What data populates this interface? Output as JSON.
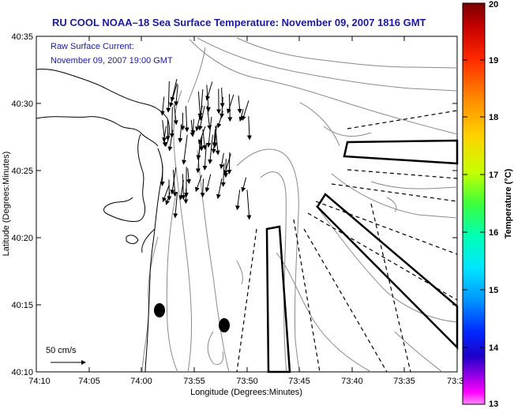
{
  "title": "RU COOL  NOAA–18  Sea Surface Temperature:  November 09, 2007 1816 GMT",
  "annotation": {
    "line1": "Raw Surface Current:",
    "line2": "November 09, 2007 19:00 GMT"
  },
  "scale": {
    "label": "50 cm/s"
  },
  "axes": {
    "xlabel": "Longitude (Degrees:Minutes)",
    "ylabel": "Latitude (Degrees:Minutes)",
    "x_ticks": [
      "74:10",
      "74:05",
      "74:00",
      "73:55",
      "73:50",
      "73:45",
      "73:40",
      "73:35",
      "73:3"
    ],
    "y_ticks": [
      "40:35",
      "40:30",
      "40:25",
      "40:20",
      "40:15",
      "40:10"
    ]
  },
  "colorbar": {
    "label": "Temperature (°C)",
    "ticks": [
      "20",
      "19",
      "18",
      "17",
      "16",
      "15",
      "14",
      "13"
    ],
    "range": [
      13,
      20
    ]
  },
  "colors": {
    "title": "#1a1aa0",
    "contour": "#808080",
    "coast": "#000000"
  }
}
